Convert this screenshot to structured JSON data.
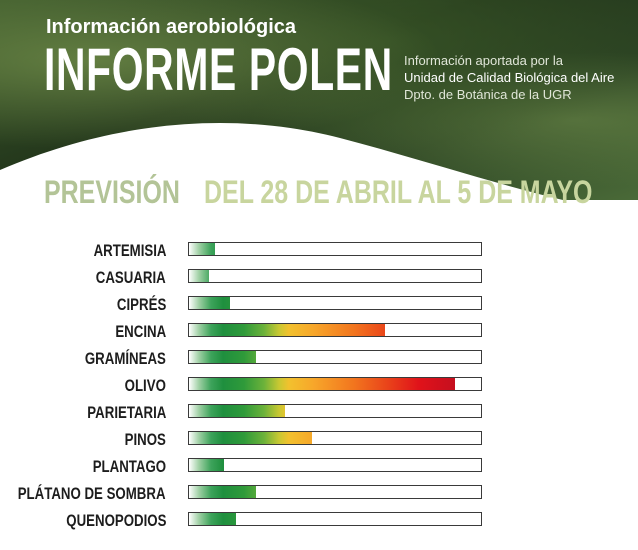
{
  "header": {
    "subtitle": "Información aerobiológica",
    "title": "INFORME POLEN",
    "credits": {
      "line1": "Información aportada por la",
      "line2": "Unidad de Calidad Biológica del Aire",
      "line3": "Dpto. de Botánica de la UGR"
    }
  },
  "forecast": {
    "label": "PREVISIÓN",
    "range": "DEL 28 DE ABRIL AL 5 DE MAYO"
  },
  "colors": {
    "low": "#1f8f3e",
    "medium": "#f2c12e",
    "high": "#e0121a",
    "forecast_label": "#b3c497",
    "forecast_range": "#c8d59e"
  },
  "pollen": [
    {
      "name": "ARTEMISIA",
      "level": 0.09
    },
    {
      "name": "CASUARIA",
      "level": 0.07
    },
    {
      "name": "CIPRÉS",
      "level": 0.14
    },
    {
      "name": "ENCINA",
      "level": 0.67
    },
    {
      "name": "GRAMÍNEAS",
      "level": 0.23
    },
    {
      "name": "OLIVO",
      "level": 0.91
    },
    {
      "name": "PARIETARIA",
      "level": 0.33
    },
    {
      "name": "PINOS",
      "level": 0.42
    },
    {
      "name": "PLANTAGO",
      "level": 0.12
    },
    {
      "name": "PLÁTANO DE SOMBRA",
      "level": 0.23
    },
    {
      "name": "QUENOPODIOS",
      "level": 0.16
    }
  ]
}
